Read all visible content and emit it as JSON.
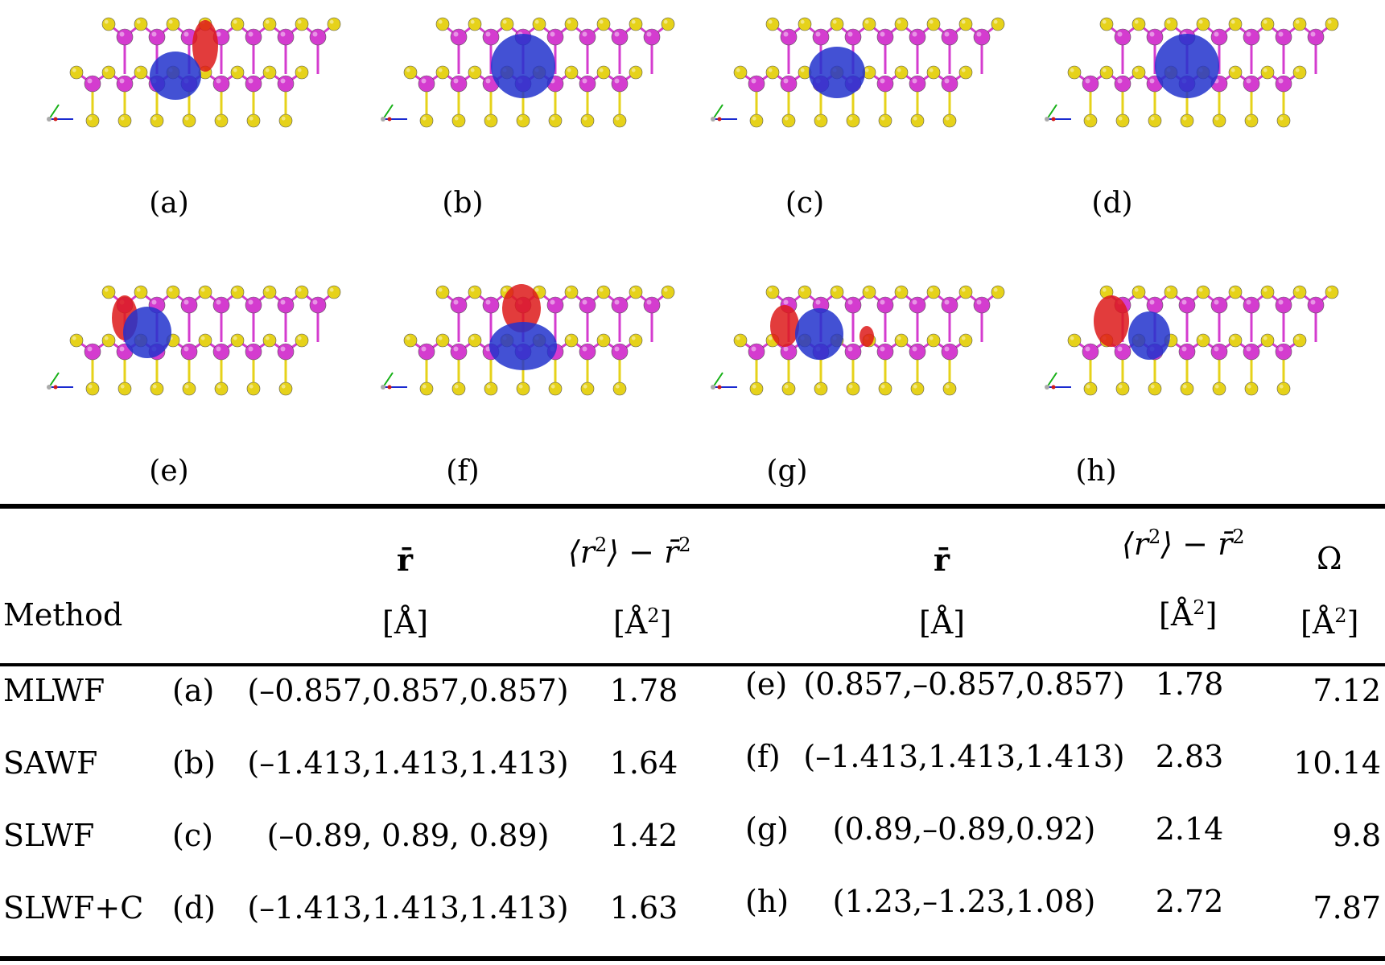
{
  "panels": [
    {
      "label": "(a)",
      "lobes": "blue-red-right"
    },
    {
      "label": "(b)",
      "lobes": "blue-center"
    },
    {
      "label": "(c)",
      "lobes": "blue-left"
    },
    {
      "label": "(d)",
      "lobes": "blue-center"
    },
    {
      "label": "(e)",
      "lobes": "red-left-blue"
    },
    {
      "label": "(f)",
      "lobes": "red-top-blue-bottom"
    },
    {
      "label": "(g)",
      "lobes": "red-left-blue-small-red-right"
    },
    {
      "label": "(h)",
      "lobes": "red-left-blue-right"
    }
  ],
  "colors": {
    "sulfur": "#e6d21a",
    "metal": "#d43ccf",
    "bond_metal": "#d43ccf",
    "bond_s": "#e6d21a",
    "positive": "#2233cc",
    "negative": "#dd1a1a"
  },
  "table": {
    "header": {
      "method": "Method",
      "rbar": "r̄",
      "spread_symbol_l": "⟨r",
      "spread_symbol_r": "⟩ − r̄",
      "exp": "2",
      "unit_A": "[Å]",
      "unit_A2": "[Å",
      "unit_A2_close": "]",
      "omega": "Ω"
    },
    "rows": [
      {
        "method": "MLWF",
        "l1": "(a)",
        "r1": "(–0.857,0.857,0.857)",
        "s1": "1.78",
        "l2": "(e)",
        "r2": "(0.857,–0.857,0.857)",
        "s2": "1.78",
        "omega": "7.12"
      },
      {
        "method": "SAWF",
        "l1": "(b)",
        "r1": "(–1.413,1.413,1.413)",
        "s1": "1.64",
        "l2": "(f)",
        "r2": "(–1.413,1.413,1.413)",
        "s2": "2.83",
        "omega": "10.14"
      },
      {
        "method": "SLWF",
        "l1": "(c)",
        "r1": "(–0.89, 0.89, 0.89)",
        "s1": "1.42",
        "l2": "(g)",
        "r2": "(0.89,–0.89,0.92)",
        "s2": "2.14",
        "omega": "9.8"
      },
      {
        "method": "SLWF+C",
        "l1": "(d)",
        "r1": "(–1.413,1.413,1.413)",
        "s1": "1.63",
        "l2": "(h)",
        "r2": "(1.23,–1.23,1.08)",
        "s2": "2.72",
        "omega": "7.87"
      }
    ]
  }
}
